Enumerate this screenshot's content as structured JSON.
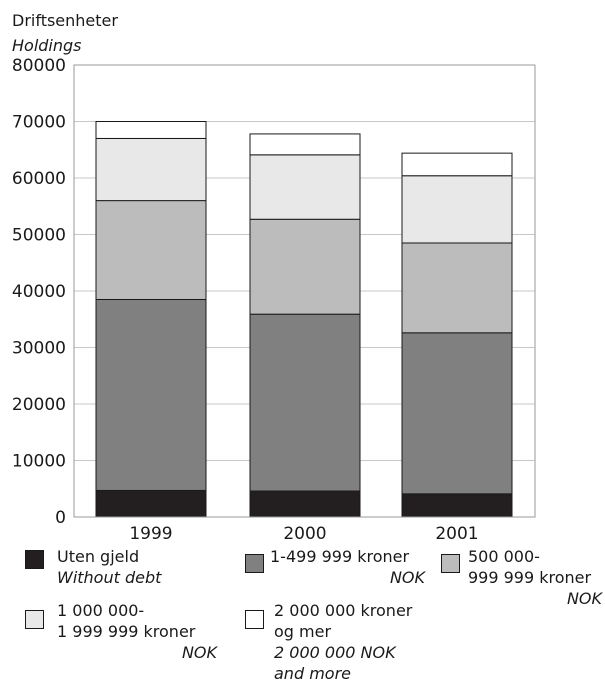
{
  "chart_data": {
    "type": "bar",
    "stacked": true,
    "ylabel": "Driftsenheter",
    "ylabel_en": "Holdings",
    "ylim": [
      0,
      80000
    ],
    "yticks": [
      "0",
      "10000",
      "20000",
      "30000",
      "40000",
      "50000",
      "60000",
      "70000",
      "80000"
    ],
    "grid": true,
    "legend_position": "bottom",
    "categories": [
      "1999",
      "2000",
      "2001"
    ],
    "series": [
      {
        "name": "Uten gjeld",
        "name_en": "Without debt",
        "color": "#231f20",
        "values": [
          4700,
          4600,
          4100
        ]
      },
      {
        "name": "1-499 999 kroner",
        "name_en": "NOK",
        "color": "#808080",
        "values": [
          33800,
          31300,
          28500
        ]
      },
      {
        "name": "500 000- 999 999 kroner",
        "name_en": "NOK",
        "color": "#bcbcbc",
        "values": [
          17500,
          16800,
          15900
        ]
      },
      {
        "name": "1 000 000- 1 999 999 kroner",
        "name_en": "NOK",
        "color": "#e8e8e8",
        "values": [
          11000,
          11400,
          11900
        ]
      },
      {
        "name": "2 000 000 kroner og mer",
        "name_en": "2 000 000 NOK and more",
        "color": "#ffffff",
        "values": [
          3000,
          3700,
          4000
        ]
      }
    ]
  },
  "legend": [
    {
      "line1": "Uten gjeld",
      "line2": "",
      "italic1": "Without debt",
      "italic2": ""
    },
    {
      "line1": "1-499 999 kroner",
      "line2": "",
      "italic1": "NOK",
      "italic2": ""
    },
    {
      "line1": "500 000-",
      "line2": "999 999 kroner",
      "italic1": "NOK",
      "italic2": ""
    },
    {
      "line1": "1 000 000-",
      "line2": "1 999 999 kroner",
      "italic1": "NOK",
      "italic2": ""
    },
    {
      "line1": "2 000 000 kroner",
      "line2": "og mer",
      "italic1": "2 000 000 NOK",
      "italic2": "and more"
    }
  ]
}
